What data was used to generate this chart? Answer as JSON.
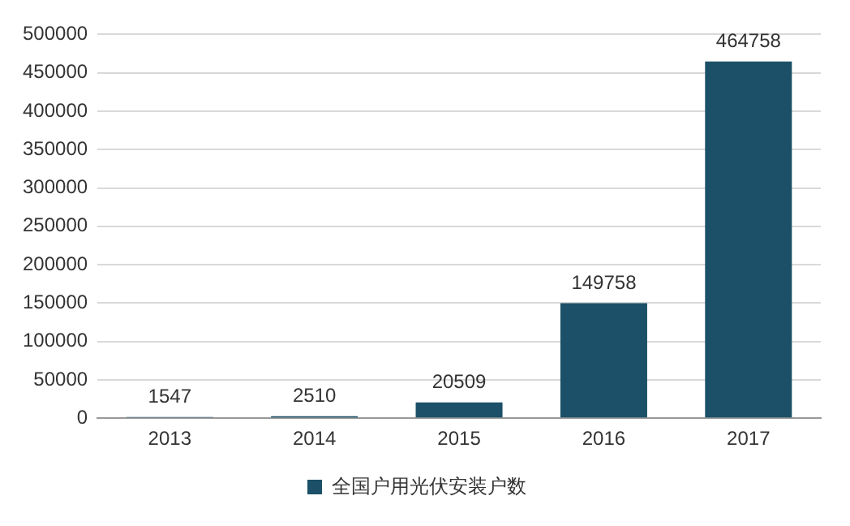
{
  "chart_data": {
    "type": "bar",
    "categories": [
      "2013",
      "2014",
      "2015",
      "2016",
      "2017"
    ],
    "series": [
      {
        "name": "全国户用光伏安装户数",
        "color": "#1b5068",
        "values": [
          1547,
          2510,
          20509,
          149758,
          464758
        ]
      }
    ],
    "ylim": [
      0,
      500000
    ],
    "yticks": [
      0,
      50000,
      100000,
      150000,
      200000,
      250000,
      300000,
      350000,
      400000,
      450000,
      500000
    ],
    "grid": "y",
    "legend": "bottom",
    "data_labels": true
  }
}
